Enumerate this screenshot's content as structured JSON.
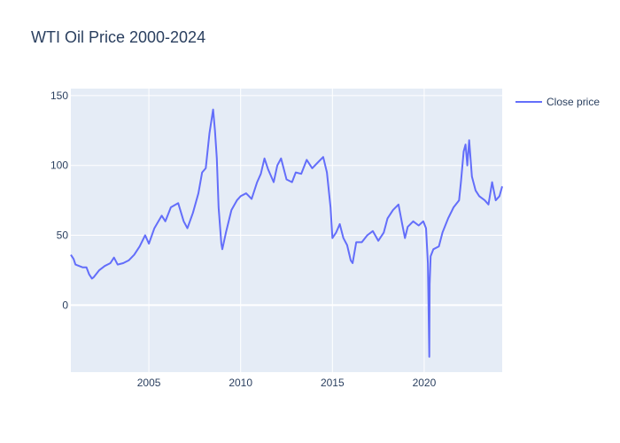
{
  "chart_data": {
    "type": "line",
    "title": "WTI Oil Price 2000-2024",
    "xlabel": "",
    "ylabel": "",
    "x_range": [
      2000.75,
      2024.25
    ],
    "y_range": [
      -48,
      155
    ],
    "x_ticks": [
      2005,
      2010,
      2015,
      2020
    ],
    "x_tick_labels": [
      "2005",
      "2010",
      "2015",
      "2020"
    ],
    "y_ticks": [
      0,
      50,
      100,
      150
    ],
    "y_tick_labels": [
      "0",
      "50",
      "100",
      "150"
    ],
    "grid": true,
    "legend": "top-right",
    "series": [
      {
        "name": "Close price",
        "color": "#636efa",
        "x": [
          2000.75,
          2000.9,
          2001.0,
          2001.2,
          2001.4,
          2001.6,
          2001.75,
          2001.9,
          2002.0,
          2002.3,
          2002.6,
          2002.9,
          2003.1,
          2003.3,
          2003.6,
          2003.9,
          2004.2,
          2004.5,
          2004.8,
          2005.0,
          2005.3,
          2005.7,
          2005.9,
          2006.2,
          2006.6,
          2006.9,
          2007.1,
          2007.4,
          2007.7,
          2007.9,
          2008.1,
          2008.3,
          2008.5,
          2008.6,
          2008.7,
          2008.8,
          2008.95,
          2009.0,
          2009.2,
          2009.5,
          2009.8,
          2010.0,
          2010.3,
          2010.6,
          2010.9,
          2011.1,
          2011.3,
          2011.5,
          2011.8,
          2012.0,
          2012.2,
          2012.5,
          2012.8,
          2013.0,
          2013.3,
          2013.6,
          2013.9,
          2014.2,
          2014.5,
          2014.7,
          2014.9,
          2015.0,
          2015.2,
          2015.4,
          2015.6,
          2015.8,
          2016.0,
          2016.1,
          2016.3,
          2016.6,
          2016.9,
          2017.2,
          2017.5,
          2017.8,
          2018.0,
          2018.3,
          2018.6,
          2018.8,
          2018.95,
          2019.1,
          2019.4,
          2019.7,
          2019.95,
          2020.1,
          2020.2,
          2020.28,
          2020.3,
          2020.35,
          2020.5,
          2020.8,
          2021.0,
          2021.3,
          2021.6,
          2021.9,
          2022.0,
          2022.15,
          2022.25,
          2022.35,
          2022.45,
          2022.6,
          2022.8,
          2023.0,
          2023.3,
          2023.5,
          2023.7,
          2023.9,
          2024.1,
          2024.25
        ],
        "y": [
          36,
          33,
          29,
          28,
          27,
          27,
          22,
          19,
          20,
          25,
          28,
          30,
          34,
          29,
          30,
          32,
          36,
          42,
          50,
          44,
          55,
          64,
          60,
          70,
          73,
          60,
          55,
          66,
          80,
          95,
          98,
          123,
          140,
          125,
          105,
          70,
          44,
          40,
          52,
          68,
          75,
          78,
          80,
          76,
          88,
          94,
          105,
          97,
          88,
          100,
          105,
          90,
          88,
          95,
          94,
          104,
          98,
          102,
          106,
          95,
          70,
          48,
          52,
          58,
          48,
          43,
          32,
          30,
          45,
          45,
          50,
          53,
          46,
          52,
          62,
          68,
          72,
          58,
          48,
          56,
          60,
          57,
          60,
          55,
          30,
          -37,
          15,
          35,
          40,
          42,
          52,
          62,
          70,
          75,
          88,
          110,
          115,
          100,
          118,
          92,
          82,
          78,
          75,
          72,
          88,
          75,
          78,
          85
        ]
      }
    ]
  }
}
